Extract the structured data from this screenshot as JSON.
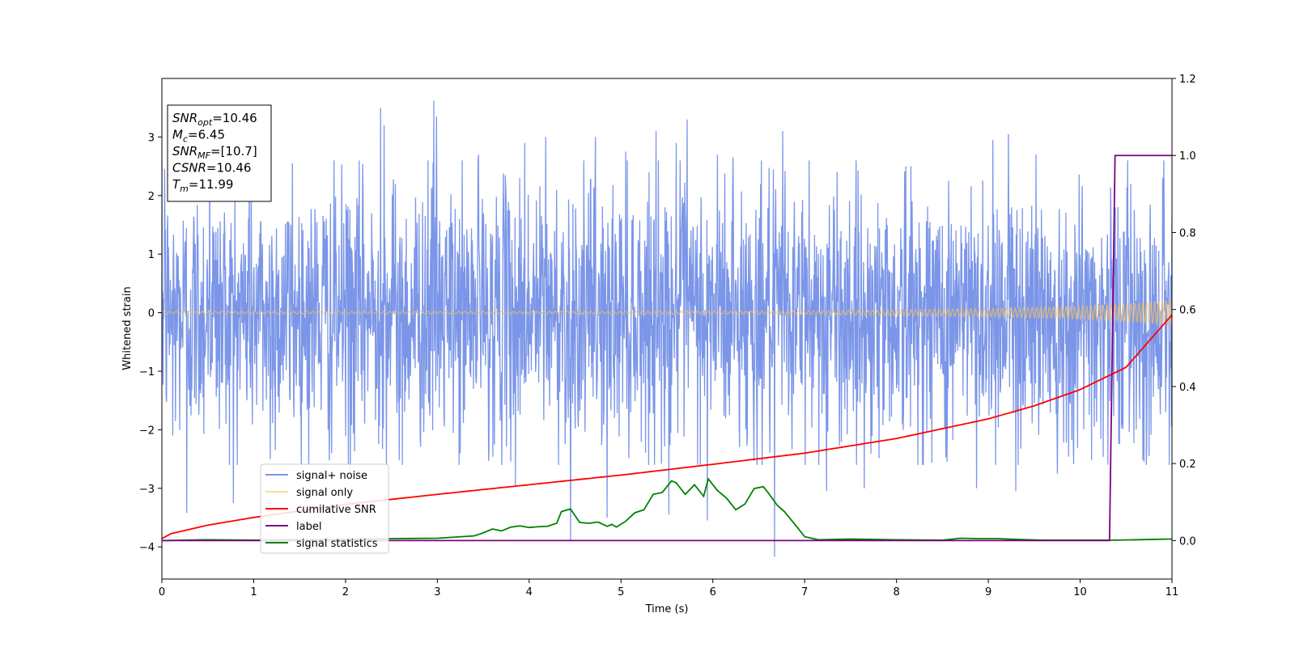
{
  "chart_data": {
    "type": "line",
    "xlabel": "Time (s)",
    "ylabel": "Whitened strain",
    "xlim": [
      0,
      11
    ],
    "ylim": [
      -4.55,
      4.0
    ],
    "y2lim": [
      -0.1,
      1.2
    ],
    "xticks": [
      0,
      1,
      2,
      3,
      4,
      5,
      6,
      7,
      8,
      9,
      10,
      11
    ],
    "yticks": [
      -4,
      -3,
      -2,
      -1,
      0,
      1,
      2,
      3
    ],
    "y2ticks": [
      "0.0",
      "0.2",
      "0.4",
      "0.6",
      "0.8",
      "1.0",
      "1.2"
    ],
    "y2tick_values": [
      0.0,
      0.2,
      0.4,
      0.6,
      0.8,
      1.0,
      1.2
    ],
    "legend_position": "lower-left",
    "annotation_box": {
      "position": "top-left",
      "lines": [
        {
          "sym": "SNR",
          "sub": "opt",
          "value": "=10.46"
        },
        {
          "sym": "M",
          "sub": "c",
          "value": "=6.45"
        },
        {
          "sym": "SNR",
          "sub": "MF",
          "value": "=[10.7]"
        },
        {
          "sym": "CSNR",
          "sub": "",
          "value": "=10.46"
        },
        {
          "sym": "T",
          "sub": "m",
          "value": "=11.99"
        }
      ]
    },
    "series": [
      {
        "name": "signal+ noise",
        "axis": "left",
        "color": "#7b96e8",
        "envelope_typical": 1.6,
        "spikes": [
          [
            0.03,
            2.45
          ],
          [
            0.12,
            -2.1
          ],
          [
            0.27,
            -3.42
          ],
          [
            0.52,
            2.7
          ],
          [
            0.78,
            -3.25
          ],
          [
            0.95,
            2.6
          ],
          [
            1.18,
            -2.5
          ],
          [
            1.42,
            2.55
          ],
          [
            1.85,
            -2.4
          ],
          [
            2.05,
            -2.75
          ],
          [
            2.38,
            3.5
          ],
          [
            2.42,
            3.2
          ],
          [
            2.62,
            -2.6
          ],
          [
            2.9,
            2.6
          ],
          [
            2.96,
            3.62
          ],
          [
            2.99,
            3.35
          ],
          [
            3.25,
            -2.4
          ],
          [
            3.45,
            2.7
          ],
          [
            3.85,
            -2.95
          ],
          [
            3.95,
            2.9
          ],
          [
            4.18,
            3.0
          ],
          [
            4.45,
            -3.9
          ],
          [
            4.72,
            3.0
          ],
          [
            4.85,
            -3.5
          ],
          [
            5.05,
            2.75
          ],
          [
            5.38,
            3.1
          ],
          [
            5.52,
            -3.45
          ],
          [
            5.6,
            2.9
          ],
          [
            5.72,
            3.3
          ],
          [
            5.94,
            -3.55
          ],
          [
            6.05,
            2.7
          ],
          [
            6.22,
            2.65
          ],
          [
            6.48,
            -2.6
          ],
          [
            6.67,
            -4.17
          ],
          [
            6.76,
            3.1
          ],
          [
            7.05,
            2.6
          ],
          [
            7.24,
            -3.05
          ],
          [
            7.65,
            -3.0
          ],
          [
            8.1,
            2.5
          ],
          [
            8.55,
            -2.55
          ],
          [
            8.87,
            -3.0
          ],
          [
            9.05,
            2.95
          ],
          [
            9.22,
            3.05
          ],
          [
            9.3,
            -3.05
          ],
          [
            9.52,
            2.7
          ],
          [
            9.75,
            -2.75
          ],
          [
            10.3,
            -2.6
          ],
          [
            10.55,
            2.2
          ],
          [
            10.75,
            -2.45
          ],
          [
            10.9,
            2.3
          ]
        ]
      },
      {
        "name": "signal only",
        "axis": "left",
        "color": "#f5c060",
        "amplitude_x": [
          0,
          4,
          7,
          8,
          9,
          10,
          10.5,
          11
        ],
        "amplitude_y": [
          0.02,
          0.02,
          0.03,
          0.05,
          0.07,
          0.11,
          0.15,
          0.22
        ]
      },
      {
        "name": "cumilative SNR",
        "axis": "right",
        "color": "#ff0000",
        "x": [
          0,
          0.1,
          0.5,
          1,
          2,
          3,
          4,
          5,
          6,
          7,
          8,
          9,
          9.5,
          10,
          10.5,
          11
        ],
        "y": [
          0.005,
          0.018,
          0.04,
          0.06,
          0.094,
          0.12,
          0.145,
          0.17,
          0.198,
          0.227,
          0.265,
          0.316,
          0.35,
          0.392,
          0.45,
          0.586
        ]
      },
      {
        "name": "label",
        "axis": "right",
        "color": "#800080",
        "x": [
          0,
          10.32,
          10.38,
          11
        ],
        "y": [
          0.0,
          0.0,
          1.0,
          1.0
        ]
      },
      {
        "name": "signal statistics",
        "axis": "right",
        "color": "#008000",
        "x": [
          0,
          0.5,
          1,
          1.5,
          2,
          2.5,
          3,
          3.4,
          3.5,
          3.6,
          3.7,
          3.8,
          3.9,
          4.0,
          4.1,
          4.2,
          4.3,
          4.35,
          4.45,
          4.55,
          4.65,
          4.75,
          4.85,
          4.9,
          4.95,
          5.05,
          5.15,
          5.25,
          5.35,
          5.45,
          5.55,
          5.6,
          5.7,
          5.8,
          5.9,
          5.95,
          6.05,
          6.15,
          6.25,
          6.35,
          6.45,
          6.55,
          6.6,
          6.7,
          6.78,
          6.9,
          7.0,
          7.15,
          7.5,
          8.0,
          8.5,
          8.7,
          8.9,
          9.1,
          9.3,
          9.6,
          10.0,
          10.4,
          10.8,
          11.0
        ],
        "y": [
          0.0,
          0.002,
          0.001,
          0.002,
          0.003,
          0.005,
          0.006,
          0.012,
          0.02,
          0.03,
          0.025,
          0.035,
          0.038,
          0.034,
          0.036,
          0.037,
          0.045,
          0.075,
          0.082,
          0.047,
          0.045,
          0.048,
          0.037,
          0.042,
          0.035,
          0.05,
          0.072,
          0.08,
          0.12,
          0.125,
          0.155,
          0.15,
          0.12,
          0.145,
          0.115,
          0.16,
          0.13,
          0.11,
          0.08,
          0.095,
          0.135,
          0.14,
          0.125,
          0.092,
          0.075,
          0.04,
          0.01,
          0.002,
          0.004,
          0.002,
          0.001,
          0.006,
          0.005,
          0.005,
          0.003,
          0.001,
          0.001,
          0.001,
          0.003,
          0.004
        ]
      }
    ]
  }
}
